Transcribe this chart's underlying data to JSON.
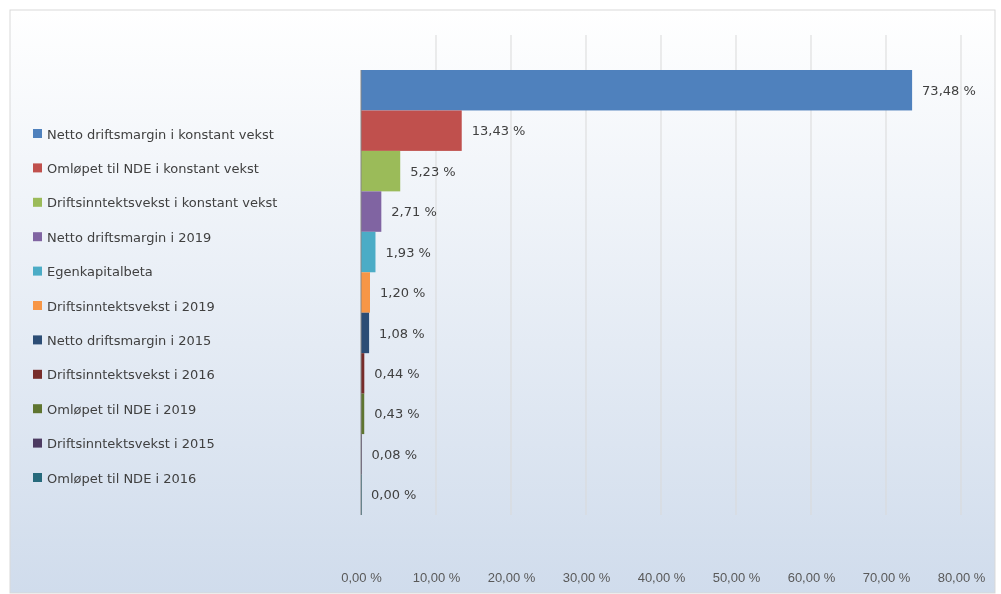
{
  "chart_data": {
    "type": "bar",
    "orientation": "horizontal",
    "categories": [
      null
    ],
    "series": [
      {
        "name": "Netto driftsmargin i konstant vekst",
        "color": "#4f81bd",
        "values": [
          73.48
        ],
        "value_labels": [
          "73,48 %"
        ]
      },
      {
        "name": "Omløpet til NDE i konstant vekst",
        "color": "#c0504d",
        "values": [
          13.43
        ],
        "value_labels": [
          "13,43 %"
        ]
      },
      {
        "name": "Driftsinntektsvekst i konstant vekst",
        "color": "#9bbb59",
        "values": [
          5.23
        ],
        "value_labels": [
          "5,23 %"
        ]
      },
      {
        "name": "Netto driftsmargin i 2019",
        "color": "#8064a2",
        "values": [
          2.71
        ],
        "value_labels": [
          "2,71 %"
        ]
      },
      {
        "name": "Egenkapitalbeta",
        "color": "#4bacc6",
        "values": [
          1.93
        ],
        "value_labels": [
          "1,93 %"
        ]
      },
      {
        "name": "Driftsinntektsvekst i 2019",
        "color": "#f79646",
        "values": [
          1.2
        ],
        "value_labels": [
          "1,20 %"
        ]
      },
      {
        "name": "Netto driftsmargin i 2015",
        "color": "#2c4d75",
        "values": [
          1.08
        ],
        "value_labels": [
          "1,08 %"
        ]
      },
      {
        "name": "Driftsinntektsvekst i 2016",
        "color": "#772c2a",
        "values": [
          0.44
        ],
        "value_labels": [
          "0,44 %"
        ]
      },
      {
        "name": "Omløpet til NDE i 2019",
        "color": "#5f7530",
        "values": [
          0.43
        ],
        "value_labels": [
          "0,43 %"
        ]
      },
      {
        "name": "Driftsinntektsvekst i 2015",
        "color": "#4d3b62",
        "values": [
          0.08
        ],
        "value_labels": [
          "0,08 %"
        ]
      },
      {
        "name": "Omløpet til NDE i 2016",
        "color": "#276a7c",
        "values": [
          0
        ],
        "value_labels": [
          "0,00 %"
        ]
      }
    ],
    "xlim": [
      0,
      80
    ],
    "xticks": [
      {
        "value": 0,
        "label": "0,00 %"
      },
      {
        "value": 10,
        "label": "10,00 %"
      },
      {
        "value": 20,
        "label": "20,00 %"
      },
      {
        "value": 30,
        "label": "30,00 %"
      },
      {
        "value": 40,
        "label": "40,00 %"
      },
      {
        "value": 50,
        "label": "50,00 %"
      },
      {
        "value": 60,
        "label": "60,00 %"
      },
      {
        "value": 70,
        "label": "70,00 %"
      },
      {
        "value": 80,
        "label": "80,00 %"
      }
    ],
    "grid": "x",
    "legend": "left",
    "tick_labels": "x"
  }
}
